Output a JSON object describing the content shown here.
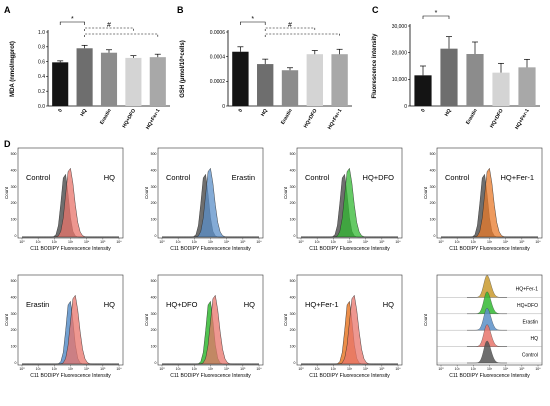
{
  "panel_letters": [
    "A",
    "B",
    "C",
    "D"
  ],
  "colors": {
    "bar_black": "#141414",
    "bar_dark_gray": "#6e6e6e",
    "bar_mid_gray": "#8c8c8c",
    "bar_light_gray": "#d4d4d4",
    "bar_gray2": "#a8a8a8",
    "control_hist": "#555555",
    "hq_hist": "#e8746b",
    "erastin_hist": "#5b8fc8",
    "dfo_hist": "#32b832",
    "fer1_hist": "#e87a2a",
    "fer1_overlay": "#c99a2e"
  },
  "chart_data": [
    {
      "panel": "A",
      "type": "bar",
      "categories": [
        "0",
        "HQ",
        "Erastin",
        "HQ+DFO",
        "HQ+Fer-1"
      ],
      "values": [
        0.59,
        0.78,
        0.72,
        0.65,
        0.66
      ],
      "errors": [
        0.02,
        0.04,
        0.04,
        0.03,
        0.04
      ],
      "ylabel": "MDA (nmol/mgprot)",
      "ylim": [
        0,
        1.0
      ],
      "yticks": [
        "0.0",
        "0.2",
        "0.4",
        "0.6",
        "0.8",
        "1.0"
      ],
      "significance": [
        {
          "from": 0,
          "to": 1,
          "label": "*"
        },
        {
          "from": 1,
          "to": 3,
          "label": "#"
        },
        {
          "from": 1,
          "to": 4,
          "label": ""
        }
      ]
    },
    {
      "panel": "B",
      "type": "bar",
      "categories": [
        "0",
        "HQ",
        "Erastin",
        "HQ+DFO",
        "HQ+Fer-1"
      ],
      "values": [
        0.00044,
        0.00034,
        0.00029,
        0.00042,
        0.00042
      ],
      "errors": [
        4e-05,
        4e-05,
        2e-05,
        3e-05,
        4e-05
      ],
      "ylabel": "GSH (μmol/10⁶cells)",
      "ylim": [
        0,
        0.0006
      ],
      "yticks": [
        "0",
        "0.0002",
        "0.0004",
        "0.0006"
      ],
      "significance": [
        {
          "from": 0,
          "to": 1,
          "label": "*"
        },
        {
          "from": 1,
          "to": 3,
          "label": "#"
        },
        {
          "from": 1,
          "to": 4,
          "label": ""
        }
      ]
    },
    {
      "panel": "C",
      "type": "bar",
      "categories": [
        "0",
        "HQ",
        "Erastin",
        "HQ+DFO",
        "HQ+Fer-1"
      ],
      "values": [
        11500,
        21500,
        19500,
        12500,
        14500
      ],
      "errors": [
        3500,
        4500,
        4500,
        3500,
        3000
      ],
      "ylabel": "Fluorescence intensity",
      "ylim": [
        0,
        30000
      ],
      "yticks": [
        "0",
        "10,000",
        "20,000",
        "30,000"
      ],
      "significance": [
        {
          "from": 0,
          "to": 1,
          "label": "*"
        }
      ]
    }
  ],
  "flow": {
    "xlabel": "C11 BODIPY Fluorescence Intensity",
    "ylabel": "Count",
    "yticks": [
      "500",
      "400",
      "300",
      "200",
      "100",
      "0"
    ],
    "xticks": [
      "10⁰",
      "10¹",
      "10²",
      "10³",
      "10⁴",
      "10⁵",
      "10⁶"
    ],
    "panels": [
      {
        "left": "Control",
        "right": "HQ"
      },
      {
        "left": "Control",
        "right": "Erastin"
      },
      {
        "left": "Control",
        "right": "HQ+DFO"
      },
      {
        "left": "Control",
        "right": "HQ+Fer-1"
      },
      {
        "left": "Erastin",
        "right": "HQ"
      },
      {
        "left": "HQ+DFO",
        "right": "HQ"
      },
      {
        "left": "HQ+Fer-1",
        "right": "HQ"
      }
    ],
    "stacked_labels": [
      "HQ+Fer-1",
      "HQ+DFO",
      "Erastin",
      "HQ",
      "Control"
    ]
  }
}
